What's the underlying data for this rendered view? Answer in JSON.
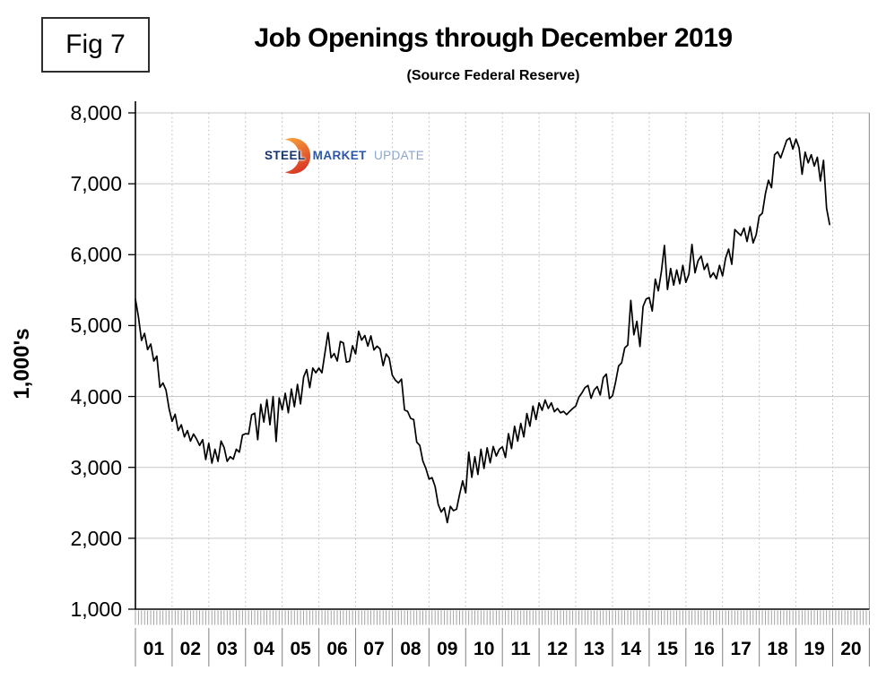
{
  "header": {
    "figure_label": "Fig 7",
    "title": "Job Openings through December 2019",
    "subtitle": "(Source Federal Reserve)"
  },
  "watermark": {
    "brand_parts": [
      "STEEL",
      "MARKET",
      "UPDATE"
    ],
    "colors": {
      "steel": "#17356d",
      "market": "#2c57a5",
      "update": "#8ca6cb",
      "swoosh_top": "#f9a63c",
      "swoosh_bottom": "#d93b26"
    }
  },
  "colors": {
    "line": "#000000",
    "axis": "#000000",
    "grid_major": "#c5c5c5",
    "grid_minor_dotted": "#b8b8b8",
    "tick_comb": "#9a9a9a",
    "label_separator": "#8a8a8a"
  },
  "chart_data": {
    "type": "line",
    "title": "Job Openings through December 2019",
    "source": "Federal Reserve",
    "ylabel": "1,000's",
    "values_unit": "thousands of job openings",
    "frequency": "monthly",
    "x_start": "2001-01",
    "x_end": "2019-12",
    "ylim": [
      1000,
      8000
    ],
    "grid": true,
    "y_ticks": [
      8000,
      7000,
      6000,
      5000,
      4000,
      3000,
      2000,
      1000
    ],
    "y_tick_labels": [
      "8,000",
      "7,000",
      "6,000",
      "5,000",
      "4,000",
      "3,000",
      "2,000",
      "1,000"
    ],
    "x_tick_labels": [
      "01",
      "02",
      "03",
      "04",
      "05",
      "06",
      "07",
      "08",
      "09",
      "10",
      "11",
      "12",
      "13",
      "14",
      "15",
      "16",
      "17",
      "18",
      "19",
      "20"
    ],
    "series": [
      {
        "name": "Job openings (1,000's)",
        "values": [
          5375,
          5120,
          4790,
          4890,
          4660,
          4740,
          4500,
          4570,
          4130,
          4190,
          4090,
          3830,
          3650,
          3750,
          3520,
          3600,
          3430,
          3520,
          3370,
          3470,
          3400,
          3310,
          3390,
          3110,
          3340,
          3060,
          3255,
          3085,
          3370,
          3280,
          3085,
          3150,
          3115,
          3255,
          3215,
          3455,
          3475,
          3470,
          3740,
          3765,
          3390,
          3890,
          3640,
          3955,
          3600,
          4000,
          3365,
          3980,
          3810,
          4045,
          3770,
          4105,
          3855,
          4170,
          3895,
          4275,
          4380,
          4125,
          4400,
          4335,
          4400,
          4335,
          4620,
          4900,
          4545,
          4605,
          4500,
          4775,
          4755,
          4485,
          4495,
          4715,
          4600,
          4920,
          4795,
          4860,
          4710,
          4855,
          4655,
          4710,
          4670,
          4435,
          4600,
          4540,
          4300,
          4230,
          4190,
          4245,
          3810,
          3790,
          3690,
          3675,
          3355,
          3310,
          3090,
          2985,
          2835,
          2855,
          2730,
          2480,
          2370,
          2430,
          2220,
          2450,
          2390,
          2410,
          2620,
          2810,
          2640,
          3215,
          2860,
          3150,
          2900,
          3255,
          2985,
          3275,
          3065,
          3295,
          3160,
          3255,
          3290,
          3140,
          3475,
          3265,
          3580,
          3370,
          3620,
          3430,
          3760,
          3580,
          3865,
          3675,
          3910,
          3805,
          3950,
          3830,
          3910,
          3785,
          3830,
          3770,
          3790,
          3745,
          3790,
          3830,
          3865,
          3990,
          4050,
          4125,
          4155,
          3975,
          4090,
          4140,
          4020,
          4265,
          4315,
          3970,
          4010,
          4200,
          4430,
          4475,
          4685,
          4725,
          5355,
          4870,
          5060,
          4705,
          5270,
          5375,
          5395,
          5205,
          5655,
          5490,
          5760,
          6130,
          5510,
          5805,
          5570,
          5785,
          5590,
          5850,
          5610,
          5725,
          6145,
          5745,
          5915,
          5980,
          5790,
          5875,
          5680,
          5745,
          5660,
          5850,
          5700,
          5950,
          6080,
          5865,
          6355,
          6310,
          6270,
          6375,
          6185,
          6395,
          6165,
          6280,
          6545,
          6585,
          6860,
          7050,
          6945,
          7410,
          7450,
          7365,
          7490,
          7615,
          7645,
          7490,
          7630,
          7510,
          7135,
          7445,
          7295,
          7410,
          7250,
          7375,
          7040,
          7330,
          6655,
          6425
        ]
      }
    ]
  }
}
